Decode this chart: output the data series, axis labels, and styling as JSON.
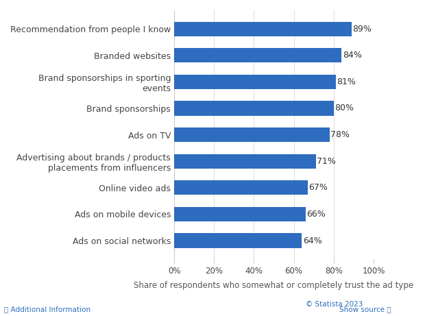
{
  "categories": [
    "Ads on social networks",
    "Ads on mobile devices",
    "Online video ads",
    "Advertising about brands / products\nplacements from influencers",
    "Ads on TV",
    "Brand sponsorships",
    "Brand sponsorships in sporting\nevents",
    "Branded websites",
    "Recommendation from people I know"
  ],
  "values": [
    64,
    66,
    67,
    71,
    78,
    80,
    81,
    84,
    89
  ],
  "bar_color": "#2d6cbf",
  "xlabel": "Share of respondents who somewhat or completely trust the ad type",
  "xlim": [
    0,
    100
  ],
  "xtick_labels": [
    "0%",
    "20%",
    "40%",
    "60%",
    "80%",
    "100%"
  ],
  "xtick_values": [
    0,
    20,
    40,
    60,
    80,
    100
  ],
  "bar_height": 0.55,
  "value_label_color": "#333333",
  "value_label_fontsize": 9,
  "ylabel_fontsize": 9,
  "xlabel_fontsize": 8.5,
  "background_color": "#ffffff",
  "grid_color": "#e0e0e0",
  "footer_statista": "© Statista 2023",
  "footer_left": "ⓘ Additional Information",
  "footer_right": "Show source ⓘ"
}
